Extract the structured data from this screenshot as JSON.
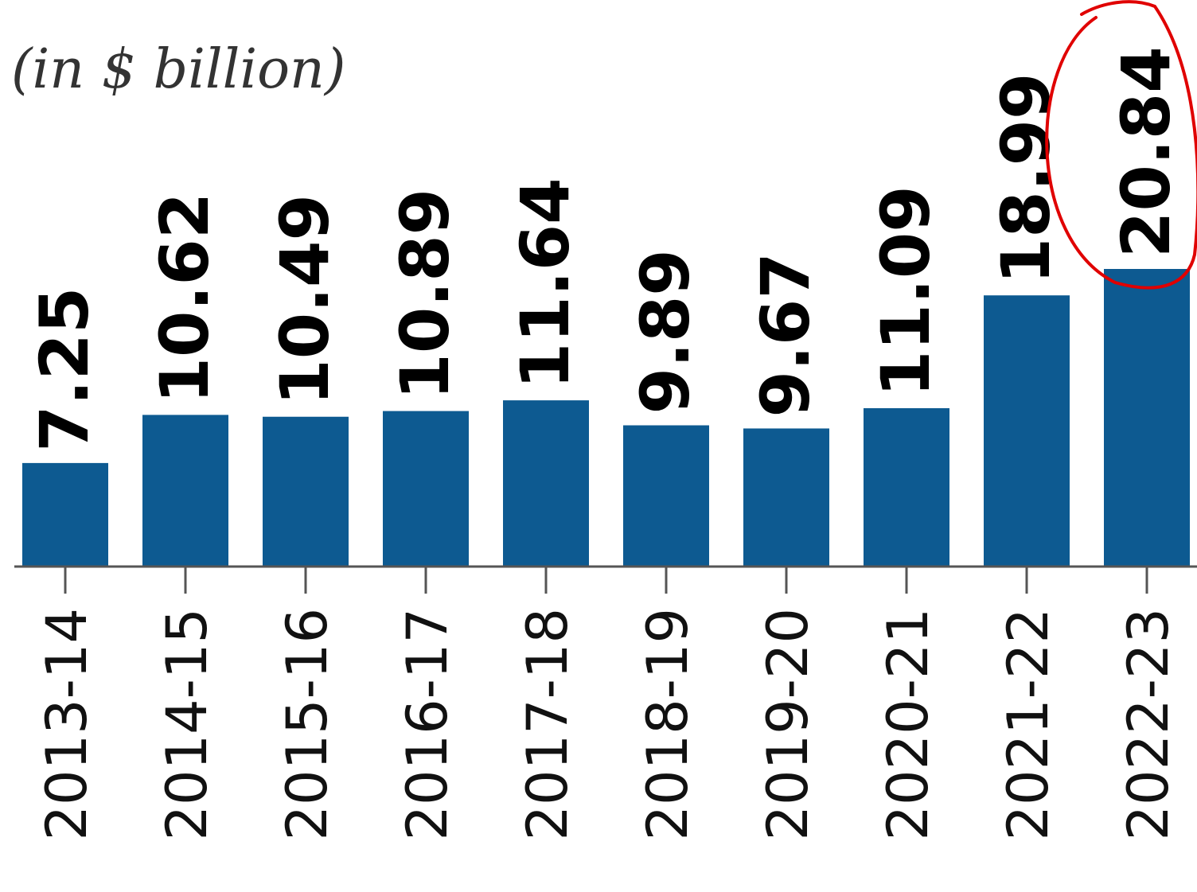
{
  "chart_data": {
    "type": "bar",
    "unit_label": "(in $ billion)",
    "categories": [
      "2013-14",
      "2014-15",
      "2015-16",
      "2016-17",
      "2017-18",
      "2018-19",
      "2019-20",
      "2020-21",
      "2021-22",
      "2022-23"
    ],
    "values": [
      7.25,
      10.62,
      10.49,
      10.89,
      11.64,
      9.89,
      9.67,
      11.09,
      18.99,
      20.84
    ],
    "value_labels": [
      "7.25",
      "10.62",
      "10.49",
      "10.89",
      "11.64",
      "9.89",
      "9.67",
      "11.09",
      "18.99",
      "20.84"
    ],
    "ylim": [
      0,
      20.84
    ],
    "grid": false,
    "bar_color": "#0d5a91",
    "axis_color": "#555555",
    "highlight": {
      "index": 9,
      "shape": "circle",
      "color": "#e00000"
    }
  }
}
